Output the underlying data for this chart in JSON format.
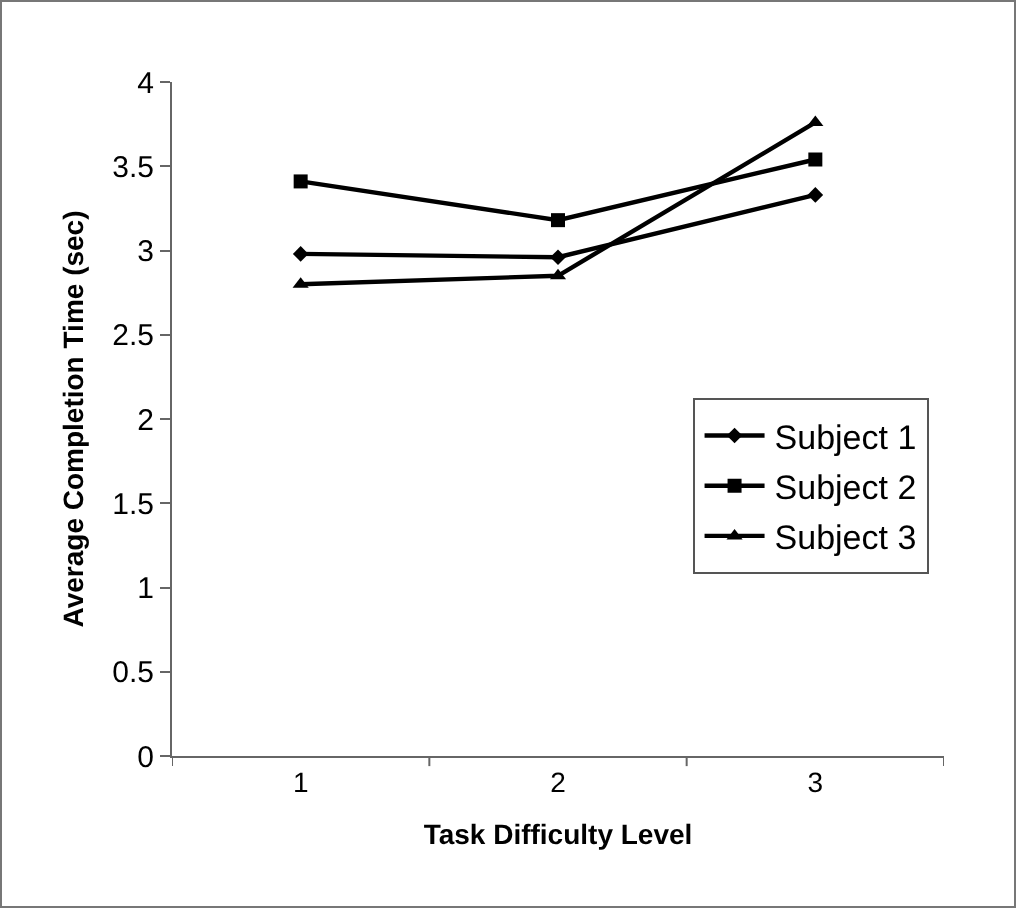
{
  "chart_data": {
    "type": "line",
    "xlabel": "Task Difficulty Level",
    "ylabel": "Average Completion Time (sec)",
    "categories": [
      "1",
      "2",
      "3"
    ],
    "ylim": [
      0,
      4
    ],
    "yticks": [
      0,
      0.5,
      1,
      1.5,
      2,
      2.5,
      3,
      3.5,
      4
    ],
    "grid": false,
    "legend": "right",
    "line_style": "solid",
    "series": [
      {
        "name": "Subject 1",
        "color": "#000000",
        "marker": "diamond",
        "values": [
          2.98,
          2.96,
          3.33
        ]
      },
      {
        "name": "Subject 2",
        "color": "#000000",
        "marker": "square",
        "values": [
          3.41,
          3.18,
          3.54
        ]
      },
      {
        "name": "Subject 3",
        "color": "#000000",
        "marker": "triangle",
        "values": [
          2.8,
          2.85,
          3.76
        ]
      }
    ]
  }
}
